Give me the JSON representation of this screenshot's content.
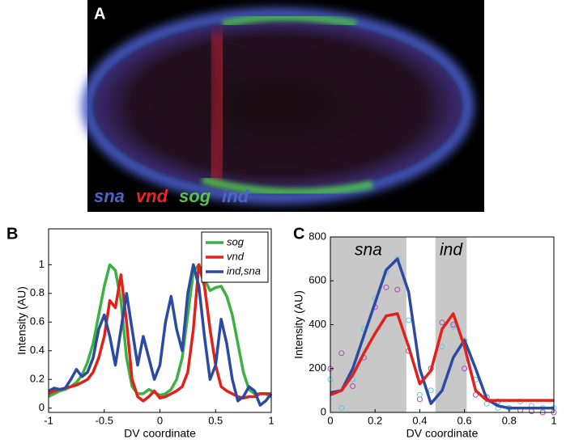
{
  "image_panel": {
    "label": "A",
    "stains": [
      {
        "text": "sna",
        "color": "#4f63c8"
      },
      {
        "text": "vnd",
        "color": "#e8262a"
      },
      {
        "text": "sog",
        "color": "#5cc24a"
      },
      {
        "text": "ind",
        "color": "#4f63c8"
      }
    ]
  },
  "chart_data": [
    {
      "type": "line",
      "panel_label": "B",
      "xlabel": "DV coordinate",
      "ylabel": "Intensity (AU)",
      "xlim": [
        -1,
        1
      ],
      "ylim": [
        -0.03,
        1.25
      ],
      "xticks": [
        -1,
        -0.5,
        0,
        0.5,
        1
      ],
      "yticks": [
        0,
        0.2,
        0.4,
        0.6,
        0.8,
        1
      ],
      "legend": "top-right",
      "x": [
        -1,
        -0.95,
        -0.9,
        -0.85,
        -0.8,
        -0.75,
        -0.7,
        -0.65,
        -0.6,
        -0.55,
        -0.5,
        -0.45,
        -0.4,
        -0.35,
        -0.3,
        -0.25,
        -0.2,
        -0.15,
        -0.1,
        -0.05,
        0,
        0.05,
        0.1,
        0.15,
        0.2,
        0.25,
        0.3,
        0.35,
        0.4,
        0.45,
        0.5,
        0.55,
        0.6,
        0.65,
        0.7,
        0.75,
        0.8,
        0.85,
        0.9,
        0.95,
        1
      ],
      "series": [
        {
          "name": "sog",
          "color": "#3cb043",
          "values": [
            0.08,
            0.1,
            0.12,
            0.13,
            0.15,
            0.18,
            0.23,
            0.32,
            0.45,
            0.65,
            0.85,
            1.0,
            0.96,
            0.75,
            0.35,
            0.15,
            0.1,
            0.1,
            0.13,
            0.11,
            0.09,
            0.1,
            0.13,
            0.2,
            0.35,
            0.65,
            0.95,
            1.0,
            0.9,
            0.82,
            0.84,
            0.85,
            0.78,
            0.65,
            0.45,
            0.25,
            0.13,
            0.1,
            0.1,
            0.1,
            0.08
          ]
        },
        {
          "name": "vnd",
          "color": "#e3201b",
          "values": [
            0.1,
            0.12,
            0.13,
            0.14,
            0.15,
            0.16,
            0.18,
            0.2,
            0.25,
            0.35,
            0.5,
            0.75,
            0.7,
            0.93,
            0.6,
            0.2,
            0.08,
            0.05,
            0.08,
            0.12,
            0.07,
            0.08,
            0.1,
            0.12,
            0.15,
            0.25,
            0.55,
            1.0,
            0.85,
            0.55,
            0.3,
            0.15,
            0.12,
            0.1,
            0.08,
            0.07,
            0.08,
            0.08,
            0.1,
            0.1,
            0.1
          ]
        },
        {
          "name": "ind,sna",
          "color": "#2b4ba3",
          "values": [
            0.12,
            0.14,
            0.13,
            0.14,
            0.2,
            0.27,
            0.22,
            0.25,
            0.35,
            0.55,
            0.65,
            0.5,
            0.3,
            0.55,
            0.8,
            0.55,
            0.3,
            0.5,
            0.35,
            0.2,
            0.3,
            0.6,
            0.78,
            0.55,
            0.4,
            0.8,
            1.0,
            0.85,
            0.5,
            0.2,
            0.3,
            0.62,
            0.45,
            0.2,
            0.05,
            0.08,
            0.15,
            0.12,
            0.02,
            0.05,
            0.1
          ]
        }
      ]
    },
    {
      "type": "line",
      "panel_label": "C",
      "xlabel": "DV coordinate",
      "ylabel": "Intensity (AU)",
      "xlim": [
        0,
        1
      ],
      "ylim": [
        0,
        800
      ],
      "xticks": [
        0,
        0.2,
        0.4,
        0.6,
        0.8,
        1
      ],
      "yticks": [
        0,
        200,
        400,
        600,
        800
      ],
      "shaded": [
        {
          "from": 0,
          "to": 0.34,
          "label": "sna"
        },
        {
          "from": 0.47,
          "to": 0.61,
          "label": "ind"
        }
      ],
      "x": [
        0,
        0.05,
        0.1,
        0.15,
        0.2,
        0.25,
        0.3,
        0.35,
        0.4,
        0.45,
        0.5,
        0.55,
        0.6,
        0.65,
        0.7,
        0.75,
        0.8,
        0.85,
        0.9,
        0.95,
        1
      ],
      "series": [
        {
          "style": "markers",
          "color": "#b048b5",
          "values": [
            200,
            270,
            120,
            250,
            480,
            570,
            560,
            280,
            60,
            200,
            410,
            400,
            200,
            80,
            70,
            50,
            20,
            10,
            5,
            0,
            0
          ]
        },
        {
          "style": "markers",
          "color": "#5bc8e0",
          "values": [
            150,
            20,
            150,
            380,
            520,
            640,
            700,
            420,
            80,
            100,
            300,
            390,
            330,
            150,
            40,
            20,
            20,
            50,
            30,
            20,
            20
          ]
        },
        {
          "style": "line",
          "color": "#2b4ba3",
          "values": [
            90,
            100,
            200,
            350,
            500,
            650,
            700,
            550,
            200,
            40,
            100,
            250,
            330,
            200,
            60,
            30,
            20,
            20,
            20,
            20,
            20
          ]
        },
        {
          "style": "line",
          "color": "#e3201b",
          "values": [
            80,
            100,
            170,
            270,
            360,
            440,
            450,
            300,
            130,
            190,
            380,
            450,
            300,
            100,
            55,
            55,
            55,
            55,
            55,
            55,
            55
          ]
        }
      ]
    }
  ]
}
